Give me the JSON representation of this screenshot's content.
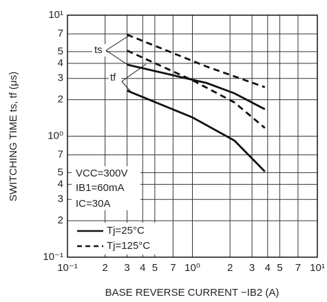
{
  "chart_data": {
    "type": "line",
    "x_label": "BASE REVERSE CURRENT   −IB2 (A)",
    "y_label": "SWITCHING TIME   ts, tf (μs)",
    "xlog": true,
    "ylog": true,
    "grid": true,
    "xlim": [
      0.1,
      10
    ],
    "ylim": [
      0.1,
      10
    ],
    "xticks": [
      {
        "value": 0.1,
        "label": "10⁻¹"
      },
      {
        "value": 0.2,
        "label": "2"
      },
      {
        "value": 0.3,
        "label": "3"
      },
      {
        "value": 0.4,
        "label": "4"
      },
      {
        "value": 0.5,
        "label": "5"
      },
      {
        "value": 0.7,
        "label": "7"
      },
      {
        "value": 1,
        "label": "10⁰"
      },
      2,
      3,
      4,
      5,
      7,
      {
        "value": 10,
        "label": "10¹"
      }
    ],
    "yticks": [
      {
        "value": 0.1,
        "label": "10⁻¹"
      },
      {
        "value": 0.2,
        "label": "2"
      },
      {
        "value": 0.3,
        "label": "3"
      },
      {
        "value": 0.4,
        "label": "4"
      },
      {
        "value": 0.5,
        "label": "5"
      },
      {
        "value": 0.7,
        "label": "7"
      },
      {
        "value": 1,
        "label": "10⁰"
      },
      2,
      3,
      4,
      5,
      7,
      {
        "value": 10,
        "label": "10¹"
      }
    ],
    "series": [
      {
        "color": "#111",
        "style": "solid",
        "x": [
          0.3,
          1.3,
          2.17,
          3.8
        ],
        "values": [
          3.9,
          2.75,
          2.26,
          1.67
        ]
      },
      {
        "color": "#111",
        "style": "solid",
        "x": [
          0.3,
          1.0,
          2.17,
          3.8
        ],
        "values": [
          2.38,
          1.43,
          0.92,
          0.51
        ]
      },
      {
        "color": "#111",
        "style": "dashed",
        "x": [
          0.3,
          1.3,
          3.8
        ],
        "values": [
          6.9,
          3.76,
          2.54
        ]
      },
      {
        "color": "#111",
        "style": "dashed",
        "x": [
          0.3,
          1.0,
          2.17,
          3.8
        ],
        "values": [
          5.1,
          2.9,
          1.9,
          1.17
        ]
      }
    ],
    "legend": [
      {
        "label": "Tj=25°C",
        "style": "solid"
      },
      {
        "label": "Tj=125°C",
        "style": "dashed"
      }
    ],
    "annotations": [
      "ts",
      "tf"
    ],
    "conditions": [
      "VCC=300V",
      "IB1=60mA",
      "IC=30A"
    ]
  }
}
